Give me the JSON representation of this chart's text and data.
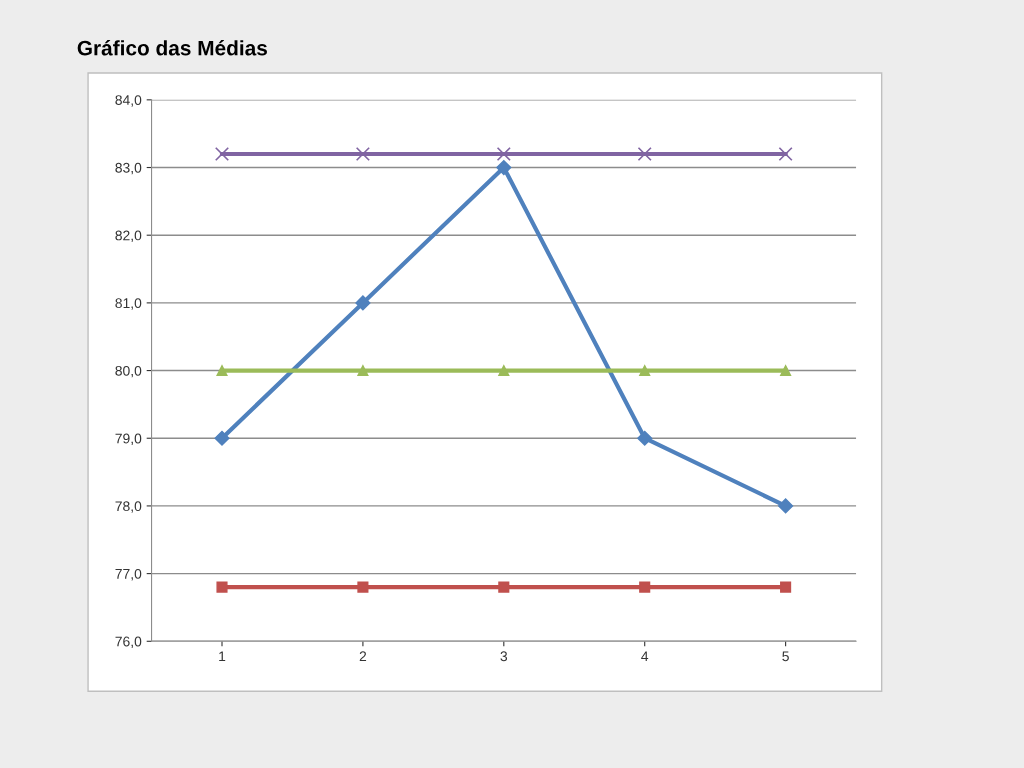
{
  "chart_data": {
    "type": "line",
    "title": "Gráfico das Médias",
    "categories": [
      "1",
      "2",
      "3",
      "4",
      "5"
    ],
    "series": [
      {
        "color": "#4f81bd",
        "marker": "diamond",
        "values": [
          79,
          81,
          83,
          79,
          78
        ]
      },
      {
        "color": "#c0504d",
        "marker": "square",
        "values": [
          76.8,
          76.8,
          76.8,
          76.8,
          76.8
        ]
      },
      {
        "color": "#9bbb59",
        "marker": "triangle",
        "values": [
          80,
          80,
          80,
          80,
          80
        ]
      },
      {
        "color": "#8064a2",
        "marker": "cross",
        "values": [
          83.2,
          83.2,
          83.2,
          83.2,
          83.2
        ]
      }
    ],
    "ylim": [
      76,
      84
    ],
    "yticks": [
      {
        "value": 76,
        "label": "76,0"
      },
      {
        "value": 77,
        "label": "77,0"
      },
      {
        "value": 78,
        "label": "78,0"
      },
      {
        "value": 79,
        "label": "79,0"
      },
      {
        "value": 80,
        "label": "80,0"
      },
      {
        "value": 81,
        "label": "81,0"
      },
      {
        "value": 82,
        "label": "82,0"
      },
      {
        "value": 83,
        "label": "83,0"
      },
      {
        "value": 84,
        "label": "84,0"
      }
    ],
    "grid": "y",
    "legend": false
  }
}
